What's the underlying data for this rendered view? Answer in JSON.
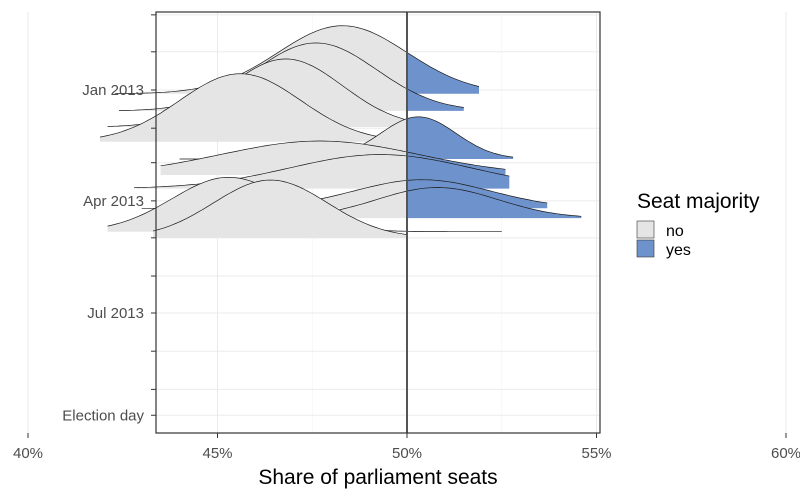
{
  "chart_data": {
    "type": "area",
    "subtype": "ridgeline",
    "title": "",
    "xlabel": "Share of parliament seats",
    "ylabel": "",
    "x_ticks": [
      {
        "value": 40,
        "label": "40%"
      },
      {
        "value": 45,
        "label": "45%"
      },
      {
        "value": 50,
        "label": "50%"
      },
      {
        "value": 55,
        "label": "55%"
      },
      {
        "value": 60,
        "label": "60%"
      }
    ],
    "xlim": [
      36.8,
      60.2
    ],
    "reference_line_x": 50,
    "y_axis": "date",
    "y_ticks": [
      {
        "value": "2013-01-01",
        "label": "Jan 2013"
      },
      {
        "value": "2013-04-01",
        "label": "Apr 2013"
      },
      {
        "value": "2013-07-01",
        "label": "Jul 2013"
      },
      {
        "value": "Election day",
        "label": "Election day"
      }
    ],
    "ylim": [
      "2012-10-25",
      "Election day"
    ],
    "grid": true,
    "legend": {
      "title": "Seat majority",
      "position": "right",
      "entries": [
        {
          "label": "no",
          "color": "#e5e5e5"
        },
        {
          "label": "yes",
          "color": "#6e93cc"
        }
      ]
    },
    "threshold": 50,
    "ridges": [
      {
        "date": "2013-01-04",
        "mean": 48.3,
        "sd": 1.7,
        "xmin": 42.3,
        "xmax": 51.9,
        "scale": 1.0
      },
      {
        "date": "2013-01-18",
        "mean": 47.6,
        "sd": 1.6,
        "xmin": 42.4,
        "xmax": 51.5,
        "scale": 1.0
      },
      {
        "date": "2013-01-31",
        "mean": 46.8,
        "sd": 1.5,
        "xmin": 42.1,
        "xmax": 50.2,
        "scale": 1.0
      },
      {
        "date": "2013-02-12",
        "mean": 45.6,
        "sd": 1.6,
        "xmin": 41.9,
        "xmax": 50.4,
        "scale": 1.0
      },
      {
        "date": "2013-02-26",
        "mean": 50.3,
        "sd": 1.0,
        "xmin": 44.0,
        "xmax": 52.8,
        "scale": 0.62
      },
      {
        "date": "2013-03-11",
        "mean": 47.7,
        "sd": 2.6,
        "xmin": 43.5,
        "xmax": 52.6,
        "scale": 0.5
      },
      {
        "date": "2013-03-22",
        "mean": 49.3,
        "sd": 2.4,
        "xmin": 42.8,
        "xmax": 52.7,
        "scale": 0.5
      },
      {
        "date": "2013-04-07",
        "mean": 50.4,
        "sd": 1.8,
        "xmin": 43.0,
        "xmax": 53.7,
        "scale": 0.42
      },
      {
        "date": "2013-04-15",
        "mean": 50.8,
        "sd": 1.6,
        "xmin": 43.3,
        "xmax": 54.6,
        "scale": 0.45
      },
      {
        "date": "2013-04-26",
        "mean": 45.3,
        "sd": 1.5,
        "xmin": 42.1,
        "xmax": 52.5,
        "scale": 0.8
      },
      {
        "date": "2013-05-01",
        "mean": 46.4,
        "sd": 1.5,
        "xmin": 43.3,
        "xmax": 50.0,
        "scale": 0.85
      }
    ]
  }
}
